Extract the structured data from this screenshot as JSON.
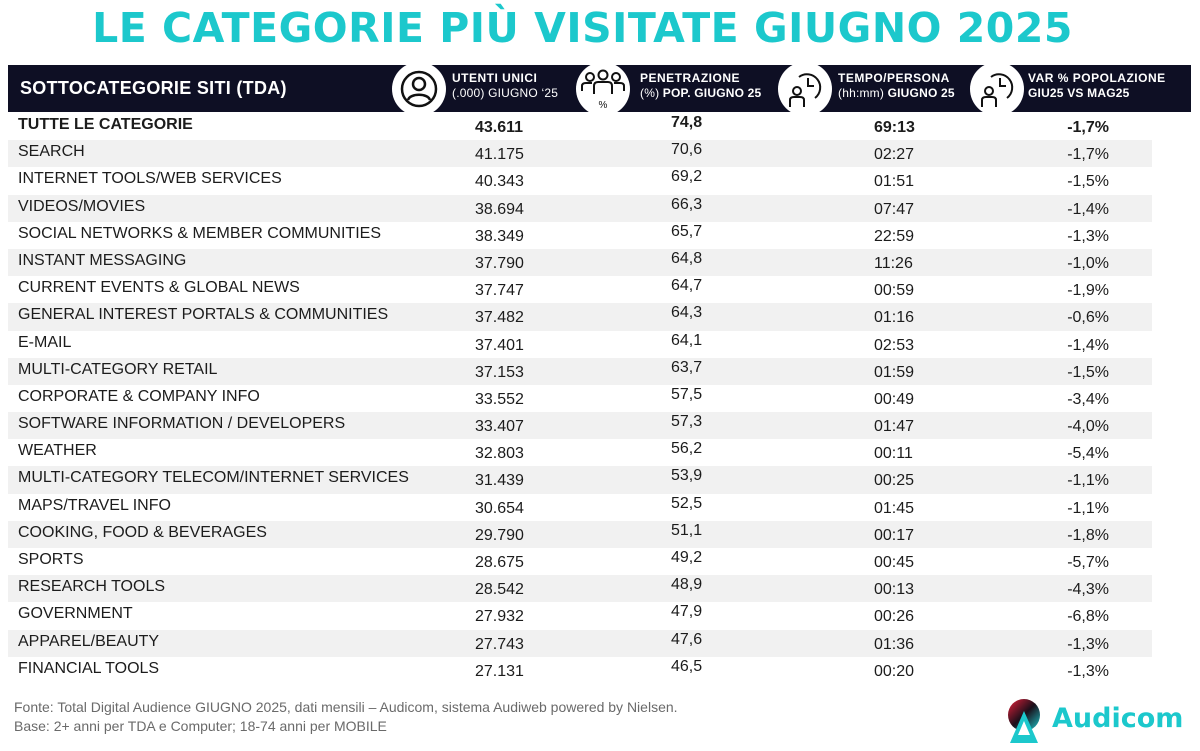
{
  "title": "LE CATEGORIE PIÙ VISITATE GIUGNO 2025",
  "header": {
    "label": "SOTTOCATEGORIE SITI  (TDA)",
    "columns": [
      {
        "icon": "user-icon",
        "line1": "UTENTI UNICI",
        "line2a": "(.000) GIUGNO ‘25",
        "line2b": ""
      },
      {
        "icon": "group-percent-icon",
        "line1": "PENETRAZIONE",
        "line2a": "(%) ",
        "line2b": "POP. GIUGNO 25",
        "icon_sub": "%"
      },
      {
        "icon": "user-clock-icon",
        "line1": "TEMPO/PERSONA",
        "line2a": "(hh:mm) ",
        "line2b": "GIUGNO 25"
      },
      {
        "icon": "user-clock-icon",
        "line1": "VAR % POPOLAZIONE",
        "line2a": "",
        "line2b": "GIU25 VS MAG25"
      }
    ]
  },
  "rows": [
    {
      "name": "TUTTE LE CATEGORIE",
      "users": "43.611",
      "penetration": "74,8",
      "time": "69:13",
      "var": "-1,7%"
    },
    {
      "name": "SEARCH",
      "users": "41.175",
      "penetration": "70,6",
      "time": "02:27",
      "var": "-1,7%"
    },
    {
      "name": "INTERNET TOOLS/WEB SERVICES",
      "users": "40.343",
      "penetration": "69,2",
      "time": "01:51",
      "var": "-1,5%"
    },
    {
      "name": "VIDEOS/MOVIES",
      "users": "38.694",
      "penetration": "66,3",
      "time": "07:47",
      "var": "-1,4%"
    },
    {
      "name": "SOCIAL NETWORKS & MEMBER COMMUNITIES",
      "users": "38.349",
      "penetration": "65,7",
      "time": "22:59",
      "var": "-1,3%"
    },
    {
      "name": "INSTANT MESSAGING",
      "users": "37.790",
      "penetration": "64,8",
      "time": "11:26",
      "var": "-1,0%"
    },
    {
      "name": "CURRENT EVENTS & GLOBAL NEWS",
      "users": "37.747",
      "penetration": "64,7",
      "time": "00:59",
      "var": "-1,9%"
    },
    {
      "name": "GENERAL INTEREST PORTALS & COMMUNITIES",
      "users": "37.482",
      "penetration": "64,3",
      "time": "01:16",
      "var": "-0,6%"
    },
    {
      "name": "E-MAIL",
      "users": "37.401",
      "penetration": "64,1",
      "time": "02:53",
      "var": "-1,4%"
    },
    {
      "name": "MULTI-CATEGORY RETAIL",
      "users": "37.153",
      "penetration": "63,7",
      "time": "01:59",
      "var": "-1,5%"
    },
    {
      "name": "CORPORATE & COMPANY INFO",
      "users": "33.552",
      "penetration": "57,5",
      "time": "00:49",
      "var": "-3,4%"
    },
    {
      "name": "SOFTWARE INFORMATION / DEVELOPERS",
      "users": "33.407",
      "penetration": "57,3",
      "time": "01:47",
      "var": "-4,0%"
    },
    {
      "name": "WEATHER",
      "users": "32.803",
      "penetration": "56,2",
      "time": "00:11",
      "var": "-5,4%"
    },
    {
      "name": "MULTI-CATEGORY TELECOM/INTERNET SERVICES",
      "users": "31.439",
      "penetration": "53,9",
      "time": "00:25",
      "var": "-1,1%"
    },
    {
      "name": "MAPS/TRAVEL INFO",
      "users": "30.654",
      "penetration": "52,5",
      "time": "01:45",
      "var": "-1,1%"
    },
    {
      "name": "COOKING, FOOD & BEVERAGES",
      "users": "29.790",
      "penetration": "51,1",
      "time": "00:17",
      "var": "-1,8%"
    },
    {
      "name": "SPORTS",
      "users": "28.675",
      "penetration": "49,2",
      "time": "00:45",
      "var": "-5,7%"
    },
    {
      "name": "RESEARCH TOOLS",
      "users": "28.542",
      "penetration": "48,9",
      "time": "00:13",
      "var": "-4,3%"
    },
    {
      "name": "GOVERNMENT",
      "users": "27.932",
      "penetration": "47,9",
      "time": "00:26",
      "var": "-6,8%"
    },
    {
      "name": "APPAREL/BEAUTY",
      "users": "27.743",
      "penetration": "47,6",
      "time": "01:36",
      "var": "-1,3%"
    },
    {
      "name": "FINANCIAL TOOLS",
      "users": "27.131",
      "penetration": "46,5",
      "time": "00:20",
      "var": "-1,3%"
    }
  ],
  "footer": {
    "line1": "Fonte: Total Digital Audience GIUGNO 2025, dati mensili – Audicom, sistema Audiweb powered by Nielsen.",
    "line2": "Base: 2+ anni per TDA e Computer; 18-74 anni per MOBILE"
  },
  "logo": {
    "text": "Audicom"
  },
  "colors": {
    "accent": "#1cc8cc",
    "header_bg": "#0e0f24",
    "row_alt": "#f1f1f1",
    "logo_red": "#e8203a"
  }
}
